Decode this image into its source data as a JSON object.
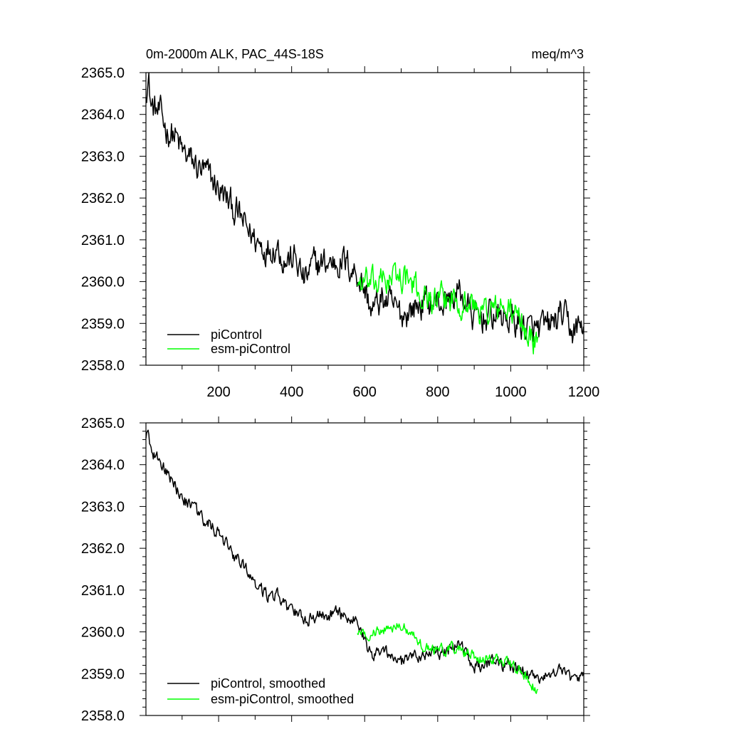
{
  "chart_data": [
    {
      "type": "line",
      "title": "0m-2000m ALK, PAC_44S-18S",
      "units": "meq/m^3",
      "xlim": [
        1,
        1200
      ],
      "ylim": [
        2358.0,
        2365.0
      ],
      "x_ticks": [
        200,
        400,
        600,
        800,
        1000,
        1200
      ],
      "y_ticks": [
        "2358.0",
        "2359.0",
        "2360.0",
        "2361.0",
        "2362.0",
        "2363.0",
        "2364.0",
        "2365.0"
      ],
      "legend": [
        "piControl",
        "esm-piControl"
      ],
      "series": [
        {
          "name": "piControl",
          "color": "#000000",
          "x_start": 1,
          "x_end": 1200,
          "noise": 0.28,
          "anchors": [
            [
              1,
              2364.7
            ],
            [
              8,
              2364.85
            ],
            [
              15,
              2364.2
            ],
            [
              40,
              2364.0
            ],
            [
              60,
              2363.6
            ],
            [
              80,
              2363.5
            ],
            [
              100,
              2363.1
            ],
            [
              140,
              2362.75
            ],
            [
              175,
              2362.5
            ],
            [
              205,
              2362.15
            ],
            [
              245,
              2361.7
            ],
            [
              275,
              2361.3
            ],
            [
              300,
              2361.0
            ],
            [
              330,
              2360.8
            ],
            [
              360,
              2360.9
            ],
            [
              380,
              2360.5
            ],
            [
              410,
              2360.55
            ],
            [
              435,
              2360.0
            ],
            [
              460,
              2360.4
            ],
            [
              500,
              2360.45
            ],
            [
              540,
              2360.5
            ],
            [
              580,
              2360.2
            ],
            [
              600,
              2359.8
            ],
            [
              620,
              2359.3
            ],
            [
              650,
              2359.6
            ],
            [
              700,
              2359.2
            ],
            [
              760,
              2359.5
            ],
            [
              820,
              2359.5
            ],
            [
              860,
              2359.75
            ],
            [
              900,
              2359.1
            ],
            [
              950,
              2359.2
            ],
            [
              1000,
              2359.1
            ],
            [
              1060,
              2358.8
            ],
            [
              1100,
              2358.9
            ],
            [
              1140,
              2359.2
            ],
            [
              1170,
              2358.8
            ],
            [
              1200,
              2359.0
            ]
          ]
        },
        {
          "name": "esm-piControl",
          "color": "#00ff00",
          "x_start": 580,
          "x_end": 1075,
          "noise": 0.26,
          "anchors": [
            [
              580,
              2360.0
            ],
            [
              620,
              2359.9
            ],
            [
              660,
              2360.05
            ],
            [
              700,
              2360.15
            ],
            [
              730,
              2359.9
            ],
            [
              760,
              2359.65
            ],
            [
              800,
              2359.5
            ],
            [
              840,
              2359.6
            ],
            [
              880,
              2359.5
            ],
            [
              920,
              2359.3
            ],
            [
              960,
              2359.35
            ],
            [
              1000,
              2359.3
            ],
            [
              1030,
              2359.0
            ],
            [
              1055,
              2358.65
            ],
            [
              1075,
              2358.55
            ]
          ]
        }
      ]
    },
    {
      "type": "line",
      "title": "",
      "xlim": [
        1,
        1200
      ],
      "ylim": [
        2358.0,
        2365.0
      ],
      "y_ticks": [
        "2358.0",
        "2359.0",
        "2360.0",
        "2361.0",
        "2362.0",
        "2363.0",
        "2364.0",
        "2365.0"
      ],
      "legend": [
        "piControl, smoothed",
        "esm-piControl, smoothed"
      ],
      "series": [
        {
          "name": "piControl, smoothed",
          "color": "#000000",
          "x_start": 1,
          "x_end": 1200,
          "noise": 0.12,
          "anchors": [
            [
              1,
              2364.75
            ],
            [
              8,
              2364.7
            ],
            [
              15,
              2364.25
            ],
            [
              40,
              2364.1
            ],
            [
              60,
              2363.75
            ],
            [
              80,
              2363.55
            ],
            [
              100,
              2363.2
            ],
            [
              140,
              2362.85
            ],
            [
              175,
              2362.6
            ],
            [
              205,
              2362.25
            ],
            [
              245,
              2361.8
            ],
            [
              275,
              2361.45
            ],
            [
              300,
              2361.15
            ],
            [
              330,
              2360.9
            ],
            [
              360,
              2360.9
            ],
            [
              380,
              2360.6
            ],
            [
              410,
              2360.5
            ],
            [
              435,
              2360.2
            ],
            [
              460,
              2360.4
            ],
            [
              500,
              2360.4
            ],
            [
              540,
              2360.45
            ],
            [
              580,
              2360.25
            ],
            [
              600,
              2359.8
            ],
            [
              620,
              2359.45
            ],
            [
              650,
              2359.6
            ],
            [
              700,
              2359.25
            ],
            [
              760,
              2359.45
            ],
            [
              820,
              2359.5
            ],
            [
              860,
              2359.75
            ],
            [
              900,
              2359.2
            ],
            [
              950,
              2359.25
            ],
            [
              1000,
              2359.15
            ],
            [
              1060,
              2358.9
            ],
            [
              1100,
              2358.95
            ],
            [
              1140,
              2359.1
            ],
            [
              1170,
              2358.75
            ],
            [
              1200,
              2359.0
            ]
          ]
        },
        {
          "name": "esm-piControl, smoothed",
          "color": "#00ff00",
          "x_start": 580,
          "x_end": 1075,
          "noise": 0.1,
          "anchors": [
            [
              580,
              2360.0
            ],
            [
              620,
              2359.95
            ],
            [
              660,
              2360.05
            ],
            [
              700,
              2360.15
            ],
            [
              730,
              2359.95
            ],
            [
              760,
              2359.7
            ],
            [
              800,
              2359.55
            ],
            [
              840,
              2359.6
            ],
            [
              880,
              2359.5
            ],
            [
              920,
              2359.35
            ],
            [
              960,
              2359.35
            ],
            [
              1000,
              2359.3
            ],
            [
              1030,
              2359.05
            ],
            [
              1055,
              2358.75
            ],
            [
              1075,
              2358.6
            ]
          ]
        }
      ]
    }
  ]
}
